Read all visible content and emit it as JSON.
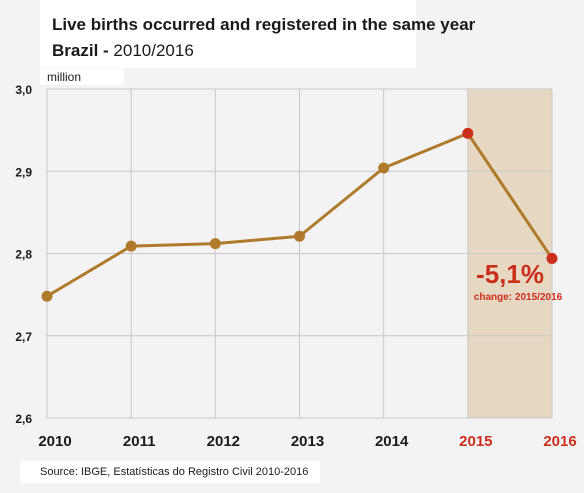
{
  "header": {
    "title": "Live births occurred and registered in the same year",
    "subtitle_bold": "Brazil -",
    "subtitle_rest": "2010/2016"
  },
  "unit_label": "million",
  "source": "Source: IBGE, Estatísticas do Registro Civil 2010-2016",
  "annotation": {
    "value": "-5,1%",
    "caption": "change: 2015/2016"
  },
  "colors": {
    "line": "#b07a2c",
    "point": "#b07a2c",
    "highlight_point": "#cc2e1c",
    "highlight_band": "#e6d8c2",
    "annotation": "#cc2e1c",
    "grid": "#c8c8c8"
  },
  "chart_data": {
    "type": "line",
    "title": "Live births occurred and registered in the same year",
    "subtitle": "Brazil - 2010/2016",
    "ylabel": "million",
    "categories": [
      "2010",
      "2011",
      "2012",
      "2013",
      "2014",
      "2015",
      "2016"
    ],
    "values": [
      2.748,
      2.809,
      2.812,
      2.821,
      2.904,
      2.946,
      2.794
    ],
    "highlighted_categories": [
      "2015",
      "2016"
    ],
    "ylim": [
      2.6,
      3.0
    ],
    "yticks": [
      "2,6",
      "2,7",
      "2,8",
      "2,9",
      "3,0"
    ],
    "grid": true
  }
}
